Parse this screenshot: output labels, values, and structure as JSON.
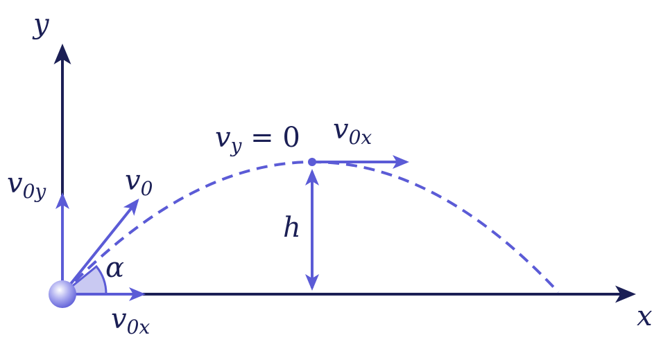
{
  "labels": {
    "y_axis": "y",
    "x_axis": "x",
    "v0y": {
      "symbol": "v",
      "sub": "0y"
    },
    "v0": {
      "symbol": "v",
      "sub": "0"
    },
    "alpha": "α",
    "v0x_bottom": {
      "symbol": "v",
      "sub": "0x"
    },
    "vy_top": {
      "symbol": "v",
      "sub": "y",
      "rest": " = 0"
    },
    "v0x_top": {
      "symbol": "v",
      "sub": "0x"
    },
    "h": "h"
  }
}
